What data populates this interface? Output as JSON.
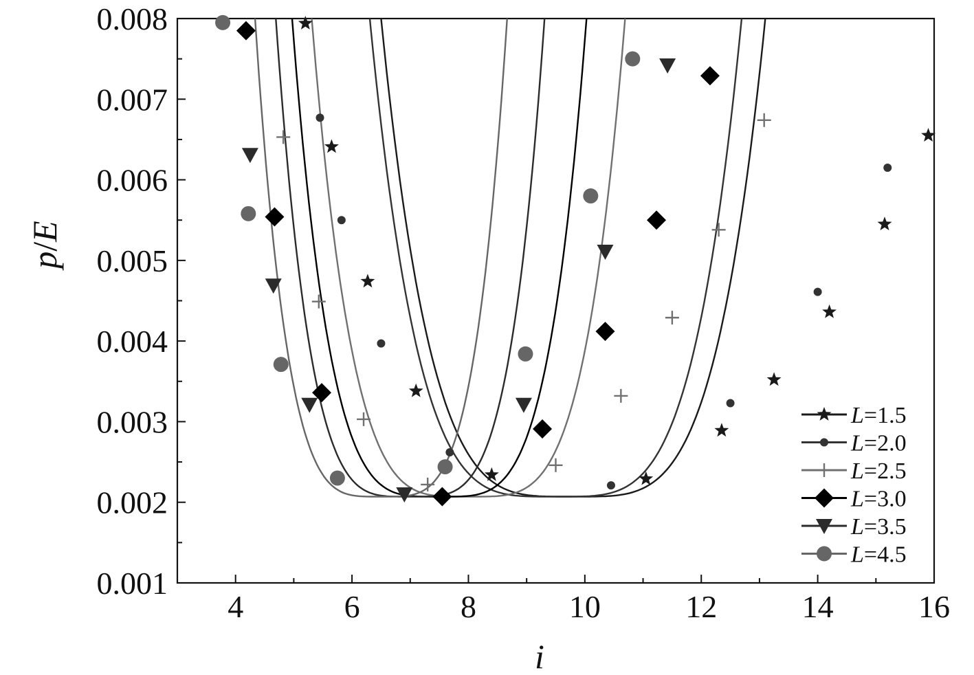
{
  "chart_data": {
    "type": "line",
    "xlabel": "i",
    "ylabel_parts": [
      "p",
      "/",
      "E"
    ],
    "xlim": [
      3,
      16
    ],
    "ylim": [
      0.001,
      0.008
    ],
    "xticks": [
      4,
      6,
      8,
      10,
      12,
      14,
      16
    ],
    "xtick_labels": [
      "4",
      "6",
      "8",
      "10",
      "12",
      "14",
      "16"
    ],
    "yticks": [
      0.001,
      0.002,
      0.003,
      0.004,
      0.005,
      0.006,
      0.007,
      0.008
    ],
    "ytick_labels": [
      "0.001",
      "0.002",
      "0.003",
      "0.004",
      "0.005",
      "0.006",
      "0.007",
      "0.008"
    ],
    "grid": false,
    "legend_position": "bottom-right",
    "series": [
      {
        "name": "L=1.5",
        "legend_var": "L",
        "legend_value": "=1.5",
        "marker": "star",
        "color": "#1a1a1a",
        "line": {
          "a": 5e-05,
          "b": 9.8,
          "c": 0.00207,
          "xmin": 4.9,
          "xmax": 15.9
        },
        "x": [
          5.2,
          5.65,
          6.27,
          7.1,
          8.4,
          11.05,
          12.35,
          13.25,
          14.2,
          15.15,
          15.9
        ],
        "y": [
          0.00794,
          0.00641,
          0.00474,
          0.00338,
          0.00234,
          0.00229,
          0.00289,
          0.00352,
          0.00436,
          0.00545,
          0.00655
        ]
      },
      {
        "name": "L=2.0",
        "legend_var": "L",
        "legend_value": "=2.0",
        "marker": "dot",
        "color": "#333333",
        "line": {
          "a": 5.7e-05,
          "b": 9.5,
          "c": 0.00207,
          "xmin": 4.9,
          "xmax": 15.9
        },
        "x": [
          5.45,
          5.82,
          6.5,
          7.68,
          10.45,
          12.5,
          14,
          15.2
        ],
        "y": [
          0.00677,
          0.0055,
          0.00397,
          0.00262,
          0.00221,
          0.00323,
          0.00461,
          0.00615
        ]
      },
      {
        "name": "L=2.5",
        "legend_var": "L",
        "legend_value": "=2.5",
        "marker": "plus",
        "color": "#707070",
        "line": {
          "a": 0.000113,
          "b": 8,
          "c": 0.00207,
          "xmin": 4.5,
          "xmax": 13.7
        },
        "x": [
          4.82,
          5.43,
          6.2,
          7.3,
          9.5,
          10.62,
          11.5,
          12.3,
          13.08
        ],
        "y": [
          0.00653,
          0.00449,
          0.00303,
          0.00222,
          0.00246,
          0.00332,
          0.00429,
          0.00538,
          0.00674
        ]
      },
      {
        "name": "L=3.0",
        "legend_var": "L",
        "legend_value": "=3.0",
        "marker": "diamond",
        "color": "#000000",
        "line": {
          "a": 0.000145,
          "b": 7.5,
          "c": 0.00207,
          "xmin": 3.9,
          "xmax": 12.5
        },
        "x": [
          4.18,
          4.67,
          5.48,
          7.55,
          9.27,
          10.35,
          11.23,
          12.15
        ],
        "y": [
          0.00785,
          0.00554,
          0.00336,
          0.00207,
          0.00291,
          0.00412,
          0.0055,
          0.00729
        ]
      },
      {
        "name": "L=3.5",
        "legend_var": "L",
        "legend_value": "=3.5",
        "marker": "triangle-down",
        "color": "#2b2b2b",
        "line": {
          "a": 0.000209,
          "b": 7,
          "c": 0.00207,
          "xmin": 3.9,
          "xmax": 11.8
        },
        "x": [
          4.25,
          4.65,
          5.27,
          6.9,
          8.95,
          10.35,
          11.42
        ],
        "y": [
          0.00631,
          0.00469,
          0.00321,
          0.0021,
          0.00321,
          0.00511,
          0.00742
        ]
      },
      {
        "name": "L=4.5",
        "legend_var": "L",
        "legend_value": "=4.5",
        "marker": "circle",
        "color": "#666666",
        "line": {
          "a": 0.00027,
          "b": 6.5,
          "c": 0.00207,
          "xmin": 3.7,
          "xmax": 11.0
        },
        "x": [
          3.78,
          4.22,
          4.78,
          5.75,
          7.6,
          8.98,
          10.1,
          10.82
        ],
        "y": [
          0.00795,
          0.00558,
          0.00371,
          0.0023,
          0.00244,
          0.00384,
          0.0058,
          0.0075
        ]
      }
    ]
  }
}
